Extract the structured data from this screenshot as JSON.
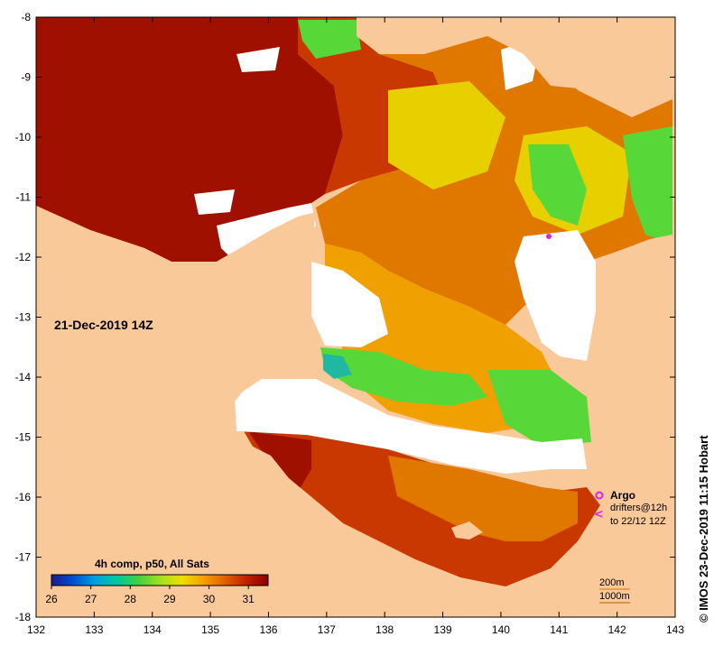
{
  "map": {
    "date_label": "21-Dec-2019 14Z",
    "composite_label": "4h comp, p50, All Sats",
    "credit": "© IMOS 23-Dec-2019 11:15 Hobart",
    "x_axis": {
      "range": [
        132,
        143
      ],
      "tick_labels": [
        "132",
        "133",
        "134",
        "135",
        "136",
        "137",
        "138",
        "139",
        "140",
        "141",
        "142",
        "143"
      ]
    },
    "y_axis": {
      "range": [
        -18,
        -8
      ],
      "tick_labels": [
        "-8",
        "-9",
        "-10",
        "-11",
        "-12",
        "-13",
        "-14",
        "-15",
        "-16",
        "-17",
        "-18"
      ]
    },
    "colorbar": {
      "range": [
        26,
        31.5
      ],
      "tick_labels": [
        "26",
        "27",
        "28",
        "29",
        "30",
        "31"
      ],
      "colors": [
        "#1a1a8c",
        "#0050d0",
        "#00a0e0",
        "#00c8a0",
        "#40d040",
        "#a0e020",
        "#f0e000",
        "#f8a000",
        "#e06000",
        "#c02000",
        "#8c0000"
      ]
    },
    "legend": {
      "argo_label": "Argo",
      "drifters_line1": "drifters@12h",
      "drifters_line2": "to 22/12 12Z",
      "argo_color": "#e020e0"
    },
    "scale": {
      "line1": "200m",
      "line2": "1000m"
    },
    "colors": {
      "land": "#fac999",
      "cloud": "#ffffff",
      "warm_dark": "#a01000",
      "warm": "#c83800",
      "mid": "#e07800",
      "orange": "#f0a000",
      "yellow": "#e8d000",
      "green": "#58d838",
      "teal": "#20b8a0"
    }
  }
}
